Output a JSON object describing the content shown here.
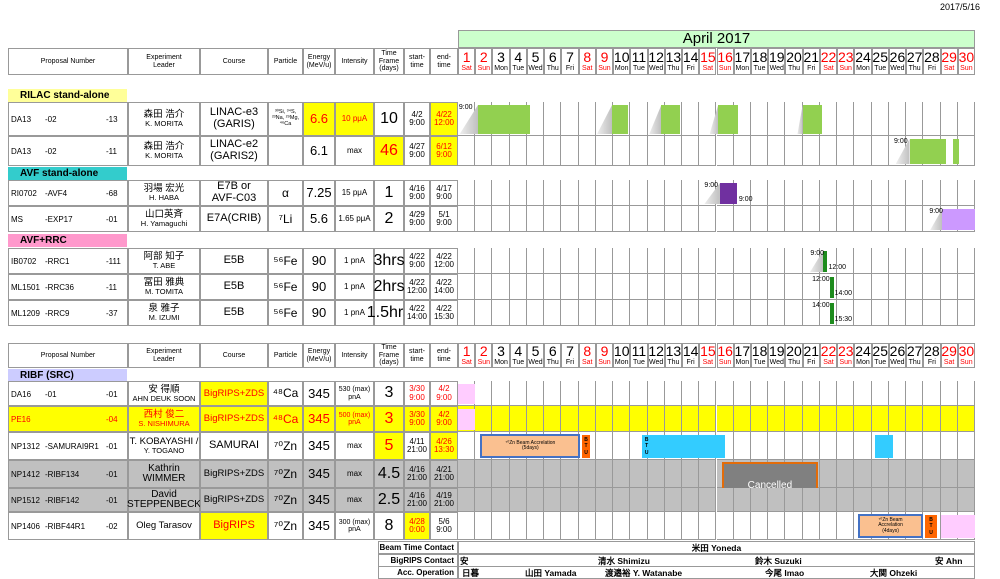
{
  "date": "2017/5/16",
  "month": "April 2017",
  "month_color": "#ccffcc",
  "highlight": "#ffff00",
  "alert": "#ff0000",
  "gray_row": "#c0c0c0",
  "columns": [
    [
      "Proposal Number"
    ],
    [
      "Experiment",
      "Leader"
    ],
    [
      "Course"
    ],
    [
      "Particle"
    ],
    [
      "Energy",
      "(MeV/u)"
    ],
    [
      "Intensity"
    ],
    [
      "Time",
      "Frame",
      "(days)"
    ],
    [
      "start-",
      "time"
    ],
    [
      "end-",
      "time"
    ]
  ],
  "days": [
    {
      "n": 1,
      "wd": "Sat",
      "red": true
    },
    {
      "n": 2,
      "wd": "Sun",
      "red": true
    },
    {
      "n": 3,
      "wd": "Mon",
      "red": false
    },
    {
      "n": 4,
      "wd": "Tue",
      "red": false
    },
    {
      "n": 5,
      "wd": "Wed",
      "red": false
    },
    {
      "n": 6,
      "wd": "Thu",
      "red": false
    },
    {
      "n": 7,
      "wd": "Fri",
      "red": false
    },
    {
      "n": 8,
      "wd": "Sat",
      "red": true
    },
    {
      "n": 9,
      "wd": "Sun",
      "red": true
    },
    {
      "n": 10,
      "wd": "Mon",
      "red": false
    },
    {
      "n": 11,
      "wd": "Tue",
      "red": false
    },
    {
      "n": 12,
      "wd": "Wed",
      "red": false
    },
    {
      "n": 13,
      "wd": "Thu",
      "red": false
    },
    {
      "n": 14,
      "wd": "Fri",
      "red": false
    },
    {
      "n": 15,
      "wd": "Sat",
      "red": true
    },
    {
      "n": 16,
      "wd": "Sun",
      "red": true
    },
    {
      "n": 17,
      "wd": "Mon",
      "red": false
    },
    {
      "n": 18,
      "wd": "Tue",
      "red": false
    },
    {
      "n": 19,
      "wd": "Wed",
      "red": false
    },
    {
      "n": 20,
      "wd": "Thu",
      "red": false
    },
    {
      "n": 21,
      "wd": "Fri",
      "red": false
    },
    {
      "n": 22,
      "wd": "Sat",
      "red": true
    },
    {
      "n": 23,
      "wd": "Sun",
      "red": true
    },
    {
      "n": 24,
      "wd": "Mon",
      "red": false
    },
    {
      "n": 25,
      "wd": "Tue",
      "red": false
    },
    {
      "n": 26,
      "wd": "Wed",
      "red": false
    },
    {
      "n": 27,
      "wd": "Thu",
      "red": false
    },
    {
      "n": 28,
      "wd": "Fri",
      "red": false
    },
    {
      "n": 29,
      "wd": "Sat",
      "red": true
    },
    {
      "n": 30,
      "wd": "Sun",
      "red": true
    }
  ],
  "block_colors": {
    "ramp": "#bfbfbf",
    "beam": "#92d050",
    "purple": "#7030a0",
    "lavender": "#cc99ff",
    "line": "#1e8c1e",
    "pink": "#ffccff",
    "cyan": "#33ccff",
    "accel": "#fac090",
    "btu": "#ff6600",
    "cancelled": "#808080"
  },
  "sections": [
    {
      "title": "RILAC stand-alone",
      "color": "#ffff99",
      "rows": [
        {
          "id": [
            "DA13",
            "-02",
            "-13"
          ],
          "leader": [
            "森田 浩介",
            "K. MORITA"
          ],
          "course": [
            "LINAC-e3",
            "(GARIS)"
          ],
          "particle": [
            "³⁰Si, ³⁴S,",
            "²³Na, ²⁹Mg, ⁴⁶Ca"
          ],
          "energy": 6.6,
          "intensity": "10 pμA",
          "frame": 10,
          "start": [
            "4/2",
            "9:00"
          ],
          "end": [
            "4/22",
            "12:00"
          ],
          "hl": [
            "energy",
            "intensity",
            "end"
          ],
          "blocks": [
            {
              "kind": "ramp",
              "from": 1.1,
              "to": 2.16
            },
            {
              "kind": "beam",
              "from": 2.16,
              "to": 5.2
            },
            {
              "kind": "ramp",
              "from": 9.07,
              "to": 9.94
            },
            {
              "kind": "beam",
              "from": 9.94,
              "to": 10.87
            },
            {
              "kind": "ramp",
              "from": 12.1,
              "to": 12.8
            },
            {
              "kind": "beam",
              "from": 12.8,
              "to": 13.9
            },
            {
              "kind": "ramp",
              "from": 15.6,
              "to": 16.1
            },
            {
              "kind": "beam",
              "from": 16.1,
              "to": 17.25
            },
            {
              "kind": "ramp",
              "from": 20.7,
              "to": 21.0
            },
            {
              "kind": "beam",
              "from": 21.0,
              "to": 22.1
            }
          ],
          "notes": [
            {
              "day": 1.05,
              "text": "9:00",
              "valign": "top"
            }
          ]
        },
        {
          "id": [
            "DA13",
            "-02",
            "-11"
          ],
          "leader": [
            "森田 浩介",
            "K. MORITA"
          ],
          "course": [
            "LINAC-e2",
            "(GARIS2)"
          ],
          "energy": 6.1,
          "intensity": "max",
          "frame": 46,
          "start": [
            "4/27",
            "9:00"
          ],
          "end": [
            "6/12",
            "9:00"
          ],
          "hl": [
            "frame",
            "end"
          ],
          "blocks": [
            {
              "kind": "ramp",
              "from": 26.4,
              "to": 27.2
            },
            {
              "kind": "beam",
              "from": 27.2,
              "to": 29.3
            },
            {
              "kind": "beam",
              "from": 29.7,
              "to": 30.1
            }
          ],
          "notes": [
            {
              "day": 26.3,
              "text": "9:00",
              "valign": "top"
            }
          ]
        }
      ]
    },
    {
      "title": "AVF stand-alone",
      "color": "#33cccc",
      "rows": [
        {
          "id": [
            "RI0702",
            "-AVF4",
            "-68"
          ],
          "leader": [
            "羽場 宏光",
            "H. HABA"
          ],
          "course": [
            "E7B or",
            "AVF-C03"
          ],
          "particle": "α",
          "energy": 7.25,
          "intensity": "15 pμA",
          "frame": 1,
          "start": [
            "4/16",
            "9:00"
          ],
          "end": [
            "4/17",
            "9:00"
          ],
          "blocks": [
            {
              "kind": "ramp",
              "from": 15.3,
              "to": 16.2
            },
            {
              "kind": "purple",
              "from": 16.2,
              "to": 17.2
            }
          ],
          "notes": [
            {
              "day": 15.3,
              "text": "9:00",
              "valign": "top"
            },
            {
              "day": 17.3,
              "text": "9:00",
              "valign": "bottom"
            }
          ]
        },
        {
          "id": [
            "MS",
            "-EXP17",
            "-01"
          ],
          "leader": [
            "山口英斉",
            "H. Yamaguchi"
          ],
          "course": [
            "E7A(CRIB)"
          ],
          "particle": "⁷Li",
          "energy": 5.6,
          "intensity": "1.65 pμA",
          "frame": 2,
          "start": [
            "4/29",
            "9:00"
          ],
          "end": [
            "5/1",
            "9:00"
          ],
          "blocks": [
            {
              "kind": "ramp",
              "from": 28.4,
              "to": 29.1
            },
            {
              "kind": "lavender",
              "from": 29.1,
              "to": 31
            }
          ],
          "notes": [
            {
              "day": 28.35,
              "text": "9:00",
              "valign": "top"
            }
          ]
        }
      ]
    },
    {
      "title": "AVF+RRC",
      "color": "#ff99cc",
      "rows": [
        {
          "id": [
            "IB0702",
            "-RRC1",
            "-111"
          ],
          "leader": [
            "阿部 知子",
            "T. ABE"
          ],
          "course": [
            "E5B"
          ],
          "particle": "⁵⁶Fe",
          "energy": 90,
          "intensity": "1 pnA",
          "frame": "3hrs",
          "start": [
            "4/22",
            "9:00"
          ],
          "end": [
            "4/22",
            "12:00"
          ],
          "blocks": [
            {
              "kind": "ramp",
              "from": 21.43,
              "to": 22.18
            },
            {
              "kind": "line",
              "from": 22.18,
              "to": 22.42
            }
          ],
          "notes": [
            {
              "day": 21.45,
              "text": "9:00",
              "valign": "top"
            },
            {
              "day": 22.5,
              "text": "12:00",
              "valign": "bottom"
            }
          ]
        },
        {
          "id": [
            "ML1501",
            "-RRC36",
            "-11"
          ],
          "leader": [
            "冨田 雅典",
            "M. TOMITA"
          ],
          "course": [
            "E5B"
          ],
          "particle": "⁵⁶Fe",
          "energy": 90,
          "intensity": "1 pnA",
          "frame": "2hrs",
          "start": [
            "4/22",
            "12:00"
          ],
          "end": [
            "4/22",
            "14:00"
          ],
          "blocks": [
            {
              "kind": "line",
              "from": 22.6,
              "to": 22.8
            }
          ],
          "notes": [
            {
              "day": 21.55,
              "text": "12:00",
              "valign": "top"
            },
            {
              "day": 22.85,
              "text": "14:00",
              "valign": "bottom"
            }
          ]
        },
        {
          "id": [
            "ML1209",
            "-RRC9",
            "-37"
          ],
          "leader": [
            "泉 雅子",
            "M. IZUMI"
          ],
          "course": [
            "E5B"
          ],
          "particle": "⁵⁶Fe",
          "energy": 90,
          "intensity": "1 pnA",
          "frame": "1.5hrs",
          "start": [
            "4/22",
            "14:00"
          ],
          "end": [
            "4/22",
            "15:30"
          ],
          "blocks": [
            {
              "kind": "line",
              "from": 22.6,
              "to": 22.8
            }
          ],
          "notes": [
            {
              "day": 21.55,
              "text": "14:00",
              "valign": "top"
            },
            {
              "day": 22.85,
              "text": "15:30",
              "valign": "bottom"
            }
          ]
        }
      ]
    },
    {
      "title": "RIBF (SRC)",
      "color": "#ccccff",
      "rows": [
        {
          "id": [
            "DA16",
            "-01",
            "-01"
          ],
          "leader": [
            "安 得順",
            "AHN DEUK SOON"
          ],
          "course": [
            "BigRIPS+ZDS"
          ],
          "particle": "⁴⁸Ca",
          "energy": 345,
          "intensity": [
            "530 (max)",
            "pnA"
          ],
          "frame": 3,
          "start": [
            "3/30",
            "9:00"
          ],
          "end": [
            "4/2",
            "9:00"
          ],
          "hl": [
            "course"
          ],
          "red": [
            "start",
            "end"
          ],
          "blocks": [
            {
              "kind": "pink",
              "from": 1,
              "to": 2
            }
          ]
        },
        {
          "id": [
            "PE16",
            "-04"
          ],
          "leader": [
            "西村 俊二",
            "S. NISHIMURA"
          ],
          "course": [
            "BigRIPS+ZDS"
          ],
          "particle": "⁴⁸Ca",
          "energy": 345,
          "intensity": [
            "500 (max)",
            "pnA"
          ],
          "frame": 3,
          "start": [
            "3/30",
            "9:00"
          ],
          "end": [
            "4/2",
            "9:00"
          ],
          "row_hl": true,
          "blocks": [
            {
              "kind": "pink",
              "from": 1,
              "to": 2
            }
          ]
        },
        {
          "id": [
            "NP1312",
            "-SAMURAI9R1",
            "-01"
          ],
          "leader": [
            "T. KOBAYASHI /",
            "Y. TOGANO"
          ],
          "course": [
            "SAMURAI"
          ],
          "particle": "⁷⁰Zn",
          "energy": 345,
          "intensity": "max",
          "frame": 5,
          "start": [
            "4/11",
            "21:00"
          ],
          "end": [
            "4/26",
            "13:30"
          ],
          "hl": [
            "frame",
            "end"
          ],
          "blocks": [
            {
              "kind": "accel",
              "from": 2.3,
              "to": 8.1,
              "text": [
                "⁷⁰Zn Beam Accrelation",
                "(5days)"
              ]
            },
            {
              "kind": "btu",
              "from": 8.2,
              "to": 8.66,
              "text": "BTU"
            },
            {
              "kind": "cyan",
              "from": 11.7,
              "to": 12.2,
              "text": "BTU"
            },
            {
              "kind": "cyan",
              "from": 12.2,
              "to": 16.5
            },
            {
              "kind": "cyan",
              "from": 25.2,
              "to": 26.25
            }
          ]
        },
        {
          "id": [
            "NP1412",
            "-RIBF134",
            "-01"
          ],
          "leader": [
            "Kathrin",
            "WIMMER"
          ],
          "course": [
            "BigRIPS+ZDS"
          ],
          "particle": "⁷⁰Zn",
          "energy": 345,
          "intensity": "max",
          "frame": 4.5,
          "start": [
            "4/16",
            "21:00"
          ],
          "end": [
            "4/21",
            "21:00"
          ],
          "gray": true,
          "blocks": [
            {
              "kind": "cancelled",
              "from": 16.3,
              "to": 21.9,
              "text": "Cancelled"
            }
          ]
        },
        {
          "id": [
            "NP1512",
            "-RIBF142",
            "-01"
          ],
          "leader": [
            "David",
            "STEPPENBECK"
          ],
          "course": [
            "BigRIPS+ZDS"
          ],
          "particle": "⁷⁰Zn",
          "energy": 345,
          "intensity": "max",
          "frame": 2.5,
          "start": [
            "4/16",
            "21:00"
          ],
          "end": [
            "4/19",
            "21:00"
          ],
          "gray": true
        },
        {
          "id": [
            "NP1406",
            "-RIBF44R1",
            "-02"
          ],
          "leader": [
            "Oleg Tarasov"
          ],
          "course": [
            "BigRIPS"
          ],
          "particle": "⁷⁰Zn",
          "energy": 345,
          "intensity": [
            "300 (max)",
            "pnA"
          ],
          "frame": 8,
          "start": [
            "4/28",
            "0:00"
          ],
          "end": [
            "5/6",
            "9:00"
          ],
          "hl": [
            "course",
            "start"
          ],
          "blocks": [
            {
              "kind": "accel",
              "from": 24.2,
              "to": 28,
              "text": [
                "⁷⁰Zn Beam",
                "Accrelation",
                "(4days)"
              ]
            },
            {
              "kind": "btu",
              "from": 28.1,
              "to": 28.8,
              "text": "BTU"
            },
            {
              "kind": "pink",
              "from": 29,
              "to": 31
            }
          ]
        }
      ]
    }
  ],
  "contacts": [
    {
      "label": "Beam Time Contact",
      "names": [
        "米田 Yoneda"
      ]
    },
    {
      "label": "BigRIPS Contact",
      "names": [
        "安",
        "清水 Shimizu",
        "鈴木 Suzuki",
        "安 Ahn"
      ]
    },
    {
      "label": "Acc. Operation",
      "names": [
        "日暮",
        "山田 Yamada",
        "渡邉裕 Y. Watanabe",
        "今尾 Imao",
        "大関 Ohzeki"
      ]
    }
  ]
}
